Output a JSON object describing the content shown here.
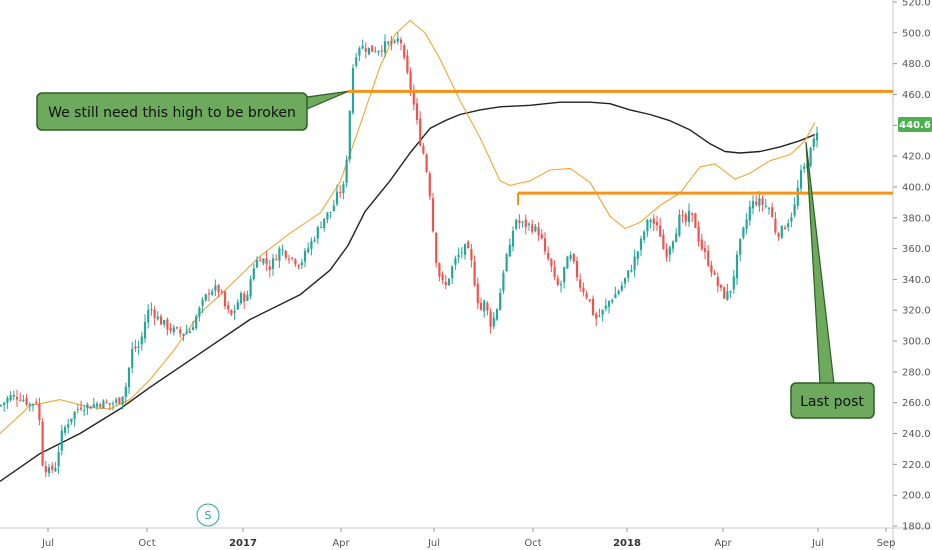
{
  "chart_data": {
    "type": "candlestick",
    "y_axis": {
      "ylim": [
        180,
        520
      ],
      "ticks": [
        "520.0",
        "500.0",
        "480.0",
        "460.0",
        "440.0",
        "420.0",
        "400.0",
        "380.0",
        "360.0",
        "340.0",
        "320.0",
        "300.0",
        "280.0",
        "260.0",
        "240.0",
        "220.0",
        "200.0",
        "180.0"
      ]
    },
    "x_axis": {
      "labels": [
        {
          "text": "Jul",
          "bold": false
        },
        {
          "text": "Oct",
          "bold": false
        },
        {
          "text": "2017",
          "bold": true
        },
        {
          "text": "Apr",
          "bold": false
        },
        {
          "text": "Jul",
          "bold": false
        },
        {
          "text": "Oct",
          "bold": false
        },
        {
          "text": "2018",
          "bold": true
        },
        {
          "text": "Apr",
          "bold": false
        },
        {
          "text": "Jul",
          "bold": false
        },
        {
          "text": "Sep",
          "bold": false
        }
      ]
    },
    "last_price": "440.6",
    "horizontal_levels": [
      462,
      396
    ],
    "annotations": [
      {
        "text": "We still need this high to be broken"
      },
      {
        "text": "Last post"
      }
    ],
    "colors": {
      "up": "#26a69a",
      "down": "#ef5350",
      "ma_short": "#f7a531",
      "ma_long": "#222222",
      "level": "#f7931a",
      "callout_fill": "#6daa5e",
      "callout_border": "#2e5e24",
      "price_badge": "#4caf50"
    },
    "ma_long_points": [
      [
        0,
        209
      ],
      [
        40,
        227
      ],
      [
        80,
        240
      ],
      [
        120,
        256
      ],
      [
        150,
        270
      ],
      [
        200,
        292
      ],
      [
        250,
        314
      ],
      [
        300,
        330
      ],
      [
        330,
        346
      ],
      [
        348,
        362
      ],
      [
        365,
        384
      ],
      [
        390,
        404
      ],
      [
        410,
        422
      ],
      [
        430,
        438
      ],
      [
        445,
        443
      ],
      [
        460,
        447
      ],
      [
        480,
        450
      ],
      [
        500,
        452
      ],
      [
        530,
        453
      ],
      [
        560,
        455
      ],
      [
        590,
        455
      ],
      [
        610,
        454
      ],
      [
        630,
        450
      ],
      [
        650,
        447
      ],
      [
        670,
        443
      ],
      [
        690,
        437
      ],
      [
        710,
        428
      ],
      [
        725,
        423
      ],
      [
        740,
        422
      ],
      [
        760,
        423
      ],
      [
        780,
        426
      ],
      [
        800,
        430
      ],
      [
        815,
        434
      ]
    ],
    "ma_short_points": [
      [
        0,
        240
      ],
      [
        30,
        258
      ],
      [
        60,
        262
      ],
      [
        90,
        257
      ],
      [
        110,
        256
      ],
      [
        130,
        262
      ],
      [
        150,
        275
      ],
      [
        175,
        295
      ],
      [
        200,
        318
      ],
      [
        230,
        336
      ],
      [
        260,
        355
      ],
      [
        290,
        370
      ],
      [
        320,
        383
      ],
      [
        340,
        403
      ],
      [
        360,
        440
      ],
      [
        380,
        478
      ],
      [
        395,
        499
      ],
      [
        410,
        508
      ],
      [
        425,
        500
      ],
      [
        440,
        483
      ],
      [
        460,
        456
      ],
      [
        480,
        432
      ],
      [
        500,
        404
      ],
      [
        510,
        401
      ],
      [
        530,
        404
      ],
      [
        550,
        411
      ],
      [
        570,
        412
      ],
      [
        590,
        403
      ],
      [
        610,
        381
      ],
      [
        625,
        373
      ],
      [
        640,
        377
      ],
      [
        660,
        388
      ],
      [
        680,
        396
      ],
      [
        700,
        413
      ],
      [
        715,
        415
      ],
      [
        735,
        405
      ],
      [
        750,
        409
      ],
      [
        770,
        417
      ],
      [
        790,
        421
      ],
      [
        805,
        430
      ],
      [
        815,
        442
      ]
    ],
    "price_path": [
      [
        0,
        258
      ],
      [
        10,
        264
      ],
      [
        20,
        264
      ],
      [
        30,
        259
      ],
      [
        38,
        262
      ],
      [
        42,
        222
      ],
      [
        48,
        215
      ],
      [
        55,
        218
      ],
      [
        62,
        240
      ],
      [
        70,
        250
      ],
      [
        80,
        258
      ],
      [
        90,
        258
      ],
      [
        100,
        260
      ],
      [
        110,
        259
      ],
      [
        120,
        262
      ],
      [
        126,
        271
      ],
      [
        132,
        294
      ],
      [
        140,
        297
      ],
      [
        146,
        316
      ],
      [
        150,
        322
      ],
      [
        160,
        313
      ],
      [
        170,
        308
      ],
      [
        180,
        305
      ],
      [
        190,
        307
      ],
      [
        200,
        321
      ],
      [
        210,
        334
      ],
      [
        220,
        333
      ],
      [
        226,
        320
      ],
      [
        232,
        316
      ],
      [
        240,
        329
      ],
      [
        248,
        328
      ],
      [
        252,
        347
      ],
      [
        260,
        355
      ],
      [
        270,
        348
      ],
      [
        280,
        360
      ],
      [
        290,
        355
      ],
      [
        300,
        350
      ],
      [
        308,
        360
      ],
      [
        316,
        370
      ],
      [
        324,
        380
      ],
      [
        332,
        385
      ],
      [
        338,
        396
      ],
      [
        344,
        400
      ],
      [
        348,
        430
      ],
      [
        352,
        475
      ],
      [
        358,
        492
      ],
      [
        365,
        490
      ],
      [
        372,
        489
      ],
      [
        380,
        490
      ],
      [
        388,
        493
      ],
      [
        395,
        492
      ],
      [
        400,
        498
      ],
      [
        405,
        478
      ],
      [
        410,
        466
      ],
      [
        415,
        449
      ],
      [
        420,
        430
      ],
      [
        425,
        418
      ],
      [
        430,
        395
      ],
      [
        435,
        357
      ],
      [
        440,
        341
      ],
      [
        445,
        334
      ],
      [
        450,
        344
      ],
      [
        455,
        352
      ],
      [
        460,
        357
      ],
      [
        465,
        360
      ],
      [
        470,
        356
      ],
      [
        475,
        337
      ],
      [
        480,
        319
      ],
      [
        485,
        326
      ],
      [
        490,
        311
      ],
      [
        495,
        316
      ],
      [
        500,
        331
      ],
      [
        505,
        353
      ],
      [
        510,
        360
      ],
      [
        515,
        380
      ],
      [
        520,
        376
      ],
      [
        530,
        375
      ],
      [
        540,
        370
      ],
      [
        545,
        356
      ],
      [
        550,
        351
      ],
      [
        555,
        338
      ],
      [
        560,
        334
      ],
      [
        565,
        349
      ],
      [
        570,
        355
      ],
      [
        575,
        347
      ],
      [
        580,
        336
      ],
      [
        585,
        332
      ],
      [
        590,
        325
      ],
      [
        595,
        314
      ],
      [
        600,
        317
      ],
      [
        605,
        321
      ],
      [
        610,
        327
      ],
      [
        615,
        330
      ],
      [
        620,
        334
      ],
      [
        625,
        340
      ],
      [
        630,
        346
      ],
      [
        635,
        354
      ],
      [
        640,
        362
      ],
      [
        645,
        373
      ],
      [
        650,
        380
      ],
      [
        655,
        375
      ],
      [
        660,
        370
      ],
      [
        665,
        355
      ],
      [
        670,
        363
      ],
      [
        675,
        370
      ],
      [
        680,
        381
      ],
      [
        685,
        376
      ],
      [
        690,
        383
      ],
      [
        695,
        376
      ],
      [
        700,
        363
      ],
      [
        705,
        356
      ],
      [
        710,
        349
      ],
      [
        715,
        340
      ],
      [
        720,
        333
      ],
      [
        725,
        329
      ],
      [
        730,
        332
      ],
      [
        735,
        347
      ],
      [
        740,
        363
      ],
      [
        745,
        375
      ],
      [
        750,
        387
      ],
      [
        755,
        391
      ],
      [
        760,
        390
      ],
      [
        765,
        388
      ],
      [
        770,
        386
      ],
      [
        775,
        372
      ],
      [
        780,
        370
      ],
      [
        785,
        375
      ],
      [
        790,
        380
      ],
      [
        795,
        388
      ],
      [
        800,
        407
      ],
      [
        805,
        413
      ],
      [
        810,
        422
      ],
      [
        815,
        432
      ],
      [
        818,
        440
      ]
    ]
  }
}
